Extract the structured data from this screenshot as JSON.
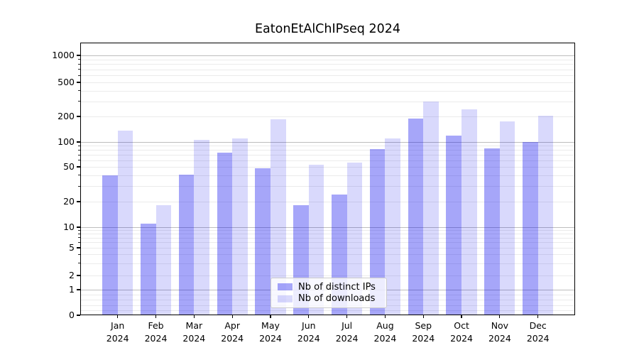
{
  "title": "EatonEtAlChIPseq 2024",
  "chart_data": {
    "type": "bar",
    "title": "EatonEtAlChIPseq 2024",
    "categories": [
      "Jan",
      "Feb",
      "Mar",
      "Apr",
      "May",
      "Jun",
      "Jul",
      "Aug",
      "Sep",
      "Oct",
      "Nov",
      "Dec"
    ],
    "year_label": "2024",
    "series": [
      {
        "name": "Nb of distinct IPs",
        "fill": "rgba(0,0,238,0.35)",
        "approx_hex_on_white": "#a6a6f7",
        "values": [
          40,
          11,
          41,
          75,
          48,
          18,
          24,
          82,
          190,
          120,
          83,
          100
        ]
      },
      {
        "name": "Nb of downloads",
        "fill": "rgba(0,0,238,0.15)",
        "approx_hex_on_white": "#d9d9f7",
        "values": [
          135,
          18,
          105,
          110,
          185,
          53,
          56,
          110,
          300,
          240,
          175,
          205
        ]
      }
    ],
    "y_axis": {
      "scale": "symlog",
      "tick_labels": [
        "1000",
        "500",
        "200",
        "100",
        "50",
        "20",
        "10",
        "5",
        "2",
        "1",
        "0"
      ],
      "ylim": [
        0,
        1400
      ],
      "grid": true
    },
    "legend": {
      "position": "bottom-center",
      "entries": [
        "Nb of distinct IPs",
        "Nb of downloads"
      ]
    }
  }
}
